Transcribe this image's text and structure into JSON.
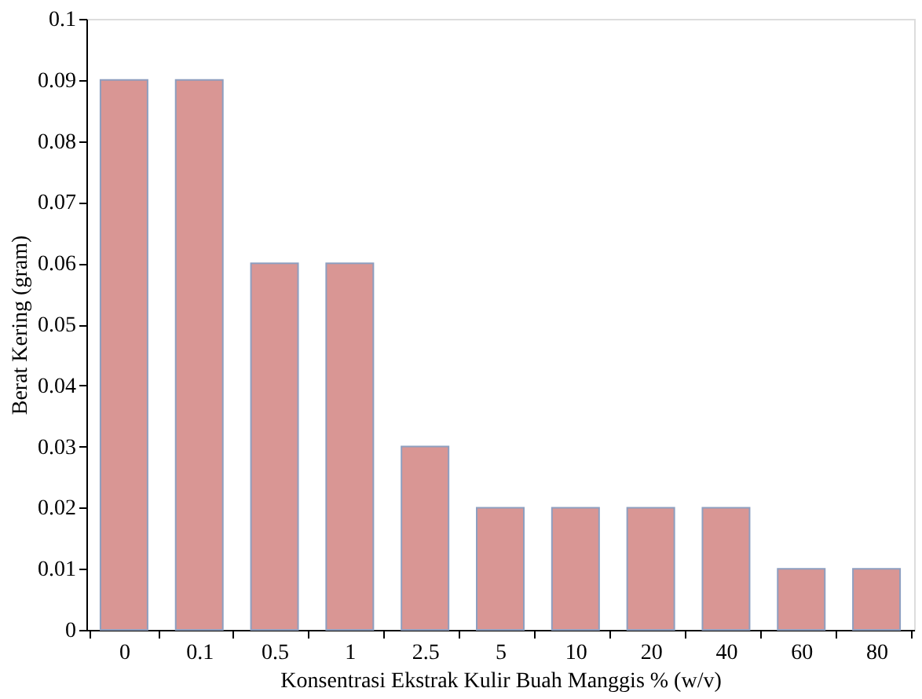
{
  "chart_data": {
    "type": "bar",
    "xlabel": "Konsentrasi Ekstrak Kulir Buah Manggis % (w/v)",
    "ylabel": "Berat Kering (gram)",
    "categories": [
      "0",
      "0.1",
      "0.5",
      "1",
      "2.5",
      "5",
      "10",
      "20",
      "40",
      "60",
      "80"
    ],
    "values": [
      0.09,
      0.09,
      0.06,
      0.06,
      0.03,
      0.02,
      0.02,
      0.02,
      0.02,
      0.01,
      0.01
    ],
    "color": "#d99694",
    "ylim": [
      0,
      0.1
    ],
    "yticks": [
      0,
      0.01,
      0.02,
      0.03,
      0.04,
      0.05,
      0.06,
      0.07,
      0.08,
      0.09,
      0.1
    ],
    "grid": false
  }
}
